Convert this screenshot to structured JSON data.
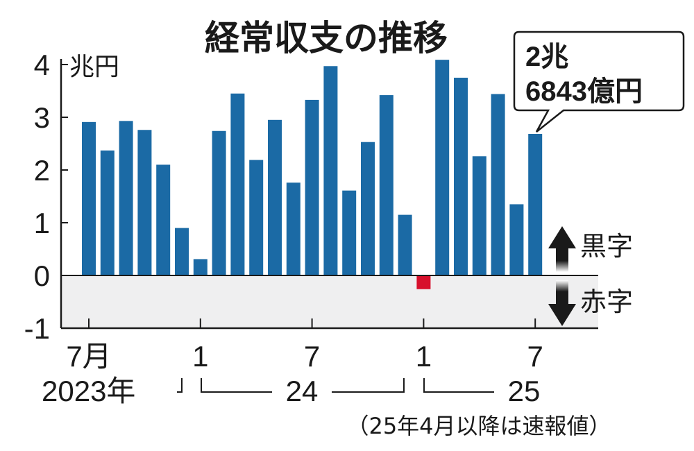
{
  "chart_data": {
    "type": "bar",
    "title": "経常収支の推移",
    "unit_label": "兆円",
    "ylim": [
      -1,
      4
    ],
    "yticks": [
      "4",
      "3",
      "2",
      "1",
      "0",
      "-1"
    ],
    "x_tick_labels": [
      "7月",
      "1",
      "7",
      "1",
      "7"
    ],
    "year_labels": [
      "2023年",
      "24",
      "25"
    ],
    "categories": [
      "2023-07",
      "2023-08",
      "2023-09",
      "2023-10",
      "2023-11",
      "2023-12",
      "2024-01",
      "2024-02",
      "2024-03",
      "2024-04",
      "2024-05",
      "2024-06",
      "2024-07",
      "2024-08",
      "2024-09",
      "2024-10",
      "2024-11",
      "2024-12",
      "2025-01",
      "2025-02",
      "2025-03",
      "2025-04",
      "2025-05",
      "2025-06",
      "2025-07"
    ],
    "values": [
      2.91,
      2.37,
      2.93,
      2.76,
      2.1,
      0.9,
      0.31,
      2.74,
      3.45,
      2.19,
      2.95,
      1.76,
      3.33,
      3.97,
      1.61,
      2.53,
      3.42,
      1.15,
      -0.26,
      4.09,
      3.75,
      2.26,
      3.44,
      1.35,
      2.6843
    ],
    "callout": {
      "line1": "2兆",
      "line2": "6843億円"
    },
    "legend": {
      "surplus": "黒字",
      "deficit": "赤字"
    },
    "note": "（25年4月以降は速報値）",
    "colors": {
      "surplus_bar": "#1b6aa5",
      "deficit_bar": "#d7102c",
      "negative_zone": "#efeff0",
      "text": "#1a1a1a"
    },
    "grid": false
  }
}
